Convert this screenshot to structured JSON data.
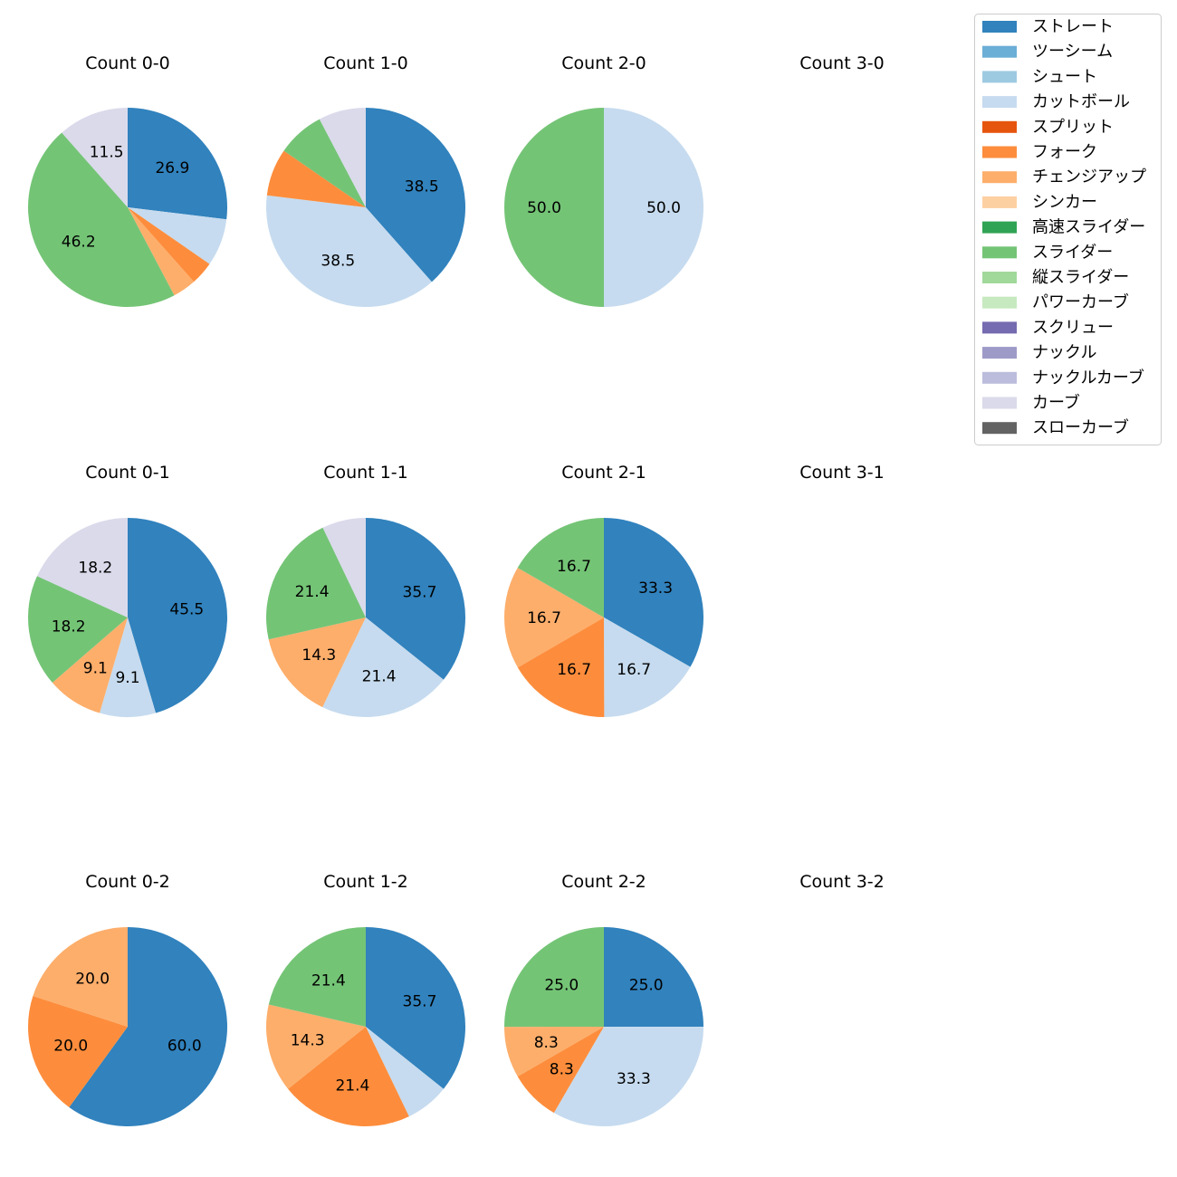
{
  "chart_data": {
    "type": "pie",
    "legend_position": "top-right",
    "pitch_types": [
      {
        "name": "ストレート",
        "color": "#3182bd"
      },
      {
        "name": "ツーシーム",
        "color": "#6baed6"
      },
      {
        "name": "シュート",
        "color": "#9ecae1"
      },
      {
        "name": "カットボール",
        "color": "#c6dbef"
      },
      {
        "name": "スプリット",
        "color": "#e6550d"
      },
      {
        "name": "フォーク",
        "color": "#fd8d3c"
      },
      {
        "name": "チェンジアップ",
        "color": "#fdae6b"
      },
      {
        "name": "シンカー",
        "color": "#fdd0a2"
      },
      {
        "name": "高速スライダー",
        "color": "#31a354"
      },
      {
        "name": "スライダー",
        "color": "#74c476"
      },
      {
        "name": "縦スライダー",
        "color": "#a1d99b"
      },
      {
        "name": "パワーカーブ",
        "color": "#c7e9c0"
      },
      {
        "name": "スクリュー",
        "color": "#756bb1"
      },
      {
        "name": "ナックル",
        "color": "#9e9ac8"
      },
      {
        "name": "ナックルカーブ",
        "color": "#bcbddc"
      },
      {
        "name": "カーブ",
        "color": "#dadaeb"
      },
      {
        "name": "スローカーブ",
        "color": "#636363"
      }
    ],
    "charts": [
      {
        "title": "Count 0-0",
        "slices": [
          {
            "pitch": "ストレート",
            "value": 26.9,
            "label": "26.9"
          },
          {
            "pitch": "カットボール",
            "value": 7.7,
            "label": ""
          },
          {
            "pitch": "フォーク",
            "value": 3.8,
            "label": ""
          },
          {
            "pitch": "チェンジアップ",
            "value": 3.8,
            "label": ""
          },
          {
            "pitch": "スライダー",
            "value": 46.2,
            "label": "46.2"
          },
          {
            "pitch": "カーブ",
            "value": 11.5,
            "label": "11.5"
          }
        ]
      },
      {
        "title": "Count 1-0",
        "slices": [
          {
            "pitch": "ストレート",
            "value": 38.5,
            "label": "38.5"
          },
          {
            "pitch": "カットボール",
            "value": 38.5,
            "label": "38.5"
          },
          {
            "pitch": "フォーク",
            "value": 7.7,
            "label": ""
          },
          {
            "pitch": "スライダー",
            "value": 7.7,
            "label": ""
          },
          {
            "pitch": "カーブ",
            "value": 7.7,
            "label": ""
          }
        ]
      },
      {
        "title": "Count 2-0",
        "slices": [
          {
            "pitch": "カットボール",
            "value": 50.0,
            "label": "50.0"
          },
          {
            "pitch": "スライダー",
            "value": 50.0,
            "label": "50.0"
          }
        ]
      },
      {
        "title": "Count 3-0",
        "slices": []
      },
      {
        "title": "Count 0-1",
        "slices": [
          {
            "pitch": "ストレート",
            "value": 45.5,
            "label": "45.5"
          },
          {
            "pitch": "カットボール",
            "value": 9.1,
            "label": "9.1"
          },
          {
            "pitch": "チェンジアップ",
            "value": 9.1,
            "label": "9.1"
          },
          {
            "pitch": "スライダー",
            "value": 18.2,
            "label": "18.2"
          },
          {
            "pitch": "カーブ",
            "value": 18.2,
            "label": "18.2"
          }
        ]
      },
      {
        "title": "Count 1-1",
        "slices": [
          {
            "pitch": "ストレート",
            "value": 35.7,
            "label": "35.7"
          },
          {
            "pitch": "カットボール",
            "value": 21.4,
            "label": "21.4"
          },
          {
            "pitch": "チェンジアップ",
            "value": 14.3,
            "label": "14.3"
          },
          {
            "pitch": "スライダー",
            "value": 21.4,
            "label": "21.4"
          },
          {
            "pitch": "カーブ",
            "value": 7.1,
            "label": ""
          }
        ]
      },
      {
        "title": "Count 2-1",
        "slices": [
          {
            "pitch": "ストレート",
            "value": 33.3,
            "label": "33.3"
          },
          {
            "pitch": "カットボール",
            "value": 16.7,
            "label": "16.7"
          },
          {
            "pitch": "フォーク",
            "value": 16.7,
            "label": "16.7"
          },
          {
            "pitch": "チェンジアップ",
            "value": 16.7,
            "label": "16.7"
          },
          {
            "pitch": "スライダー",
            "value": 16.7,
            "label": "16.7"
          }
        ]
      },
      {
        "title": "Count 3-1",
        "slices": []
      },
      {
        "title": "Count 0-2",
        "slices": [
          {
            "pitch": "ストレート",
            "value": 60.0,
            "label": "60.0"
          },
          {
            "pitch": "フォーク",
            "value": 20.0,
            "label": "20.0"
          },
          {
            "pitch": "チェンジアップ",
            "value": 20.0,
            "label": "20.0"
          }
        ]
      },
      {
        "title": "Count 1-2",
        "slices": [
          {
            "pitch": "ストレート",
            "value": 35.7,
            "label": "35.7"
          },
          {
            "pitch": "カットボール",
            "value": 7.1,
            "label": ""
          },
          {
            "pitch": "フォーク",
            "value": 21.4,
            "label": "21.4"
          },
          {
            "pitch": "チェンジアップ",
            "value": 14.3,
            "label": "14.3"
          },
          {
            "pitch": "スライダー",
            "value": 21.4,
            "label": "21.4"
          }
        ]
      },
      {
        "title": "Count 2-2",
        "slices": [
          {
            "pitch": "ストレート",
            "value": 25.0,
            "label": "25.0"
          },
          {
            "pitch": "カットボール",
            "value": 33.3,
            "label": "33.3"
          },
          {
            "pitch": "フォーク",
            "value": 8.3,
            "label": "8.3"
          },
          {
            "pitch": "チェンジアップ",
            "value": 8.3,
            "label": "8.3"
          },
          {
            "pitch": "スライダー",
            "value": 25.0,
            "label": "25.0"
          }
        ]
      },
      {
        "title": "Count 3-2",
        "slices": []
      }
    ]
  }
}
